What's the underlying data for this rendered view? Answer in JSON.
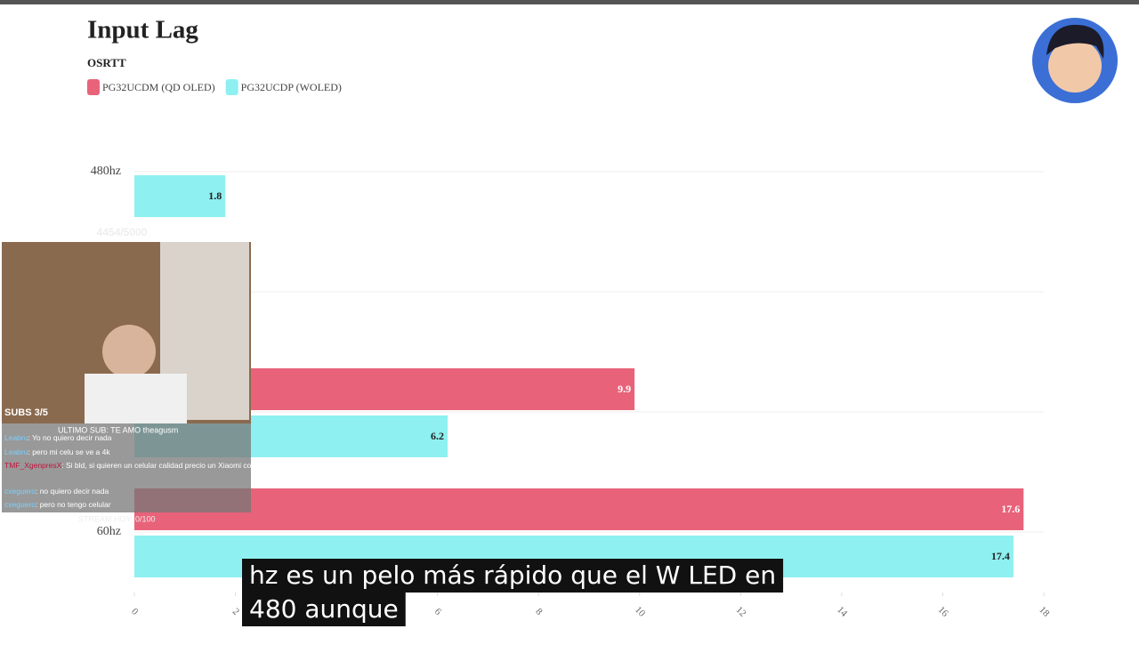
{
  "chart_data": {
    "type": "barh",
    "title": "Input Lag",
    "subtitle": "OSRTT",
    "categories": [
      "480hz",
      null,
      null,
      "60hz"
    ],
    "series": [
      {
        "name": "PG32UCDM (QD OLED)",
        "color": "#e8637a",
        "values": [
          null,
          null,
          9.9,
          17.6
        ]
      },
      {
        "name": "PG32UCDP (WOLED)",
        "color": "#8ef0f0",
        "values": [
          1.8,
          null,
          6.2,
          17.4
        ]
      }
    ],
    "xlim": [
      0,
      18
    ],
    "xticks": [
      0,
      2,
      4,
      6,
      8,
      10,
      12,
      14,
      16,
      18
    ]
  },
  "overlay": {
    "goal": "4454/5000",
    "subs": "SUBS 3/5",
    "last_sub": "ULTIMO SUB: TE AMO theagusm",
    "chat": [
      {
        "user": "Leabru",
        "text": ": Yo no quiero decir nada"
      },
      {
        "user": "Leabru",
        "text": ": pero mi celu se ve a 4k"
      },
      {
        "user": "TMF_XgenpresX",
        "text": ": Si bld, si quieren un celular calidad precio un Xiaomi cortaaaa"
      },
      {
        "user": "cxeguero",
        "text": ": no quiero decir nada"
      },
      {
        "user": "cxeguero",
        "text": ": pero no tengo celular"
      }
    ],
    "stream": "STREAM HOY: 0/100",
    "caption": [
      "hz es un pelo más rápido que el W LED en",
      "480 aunque"
    ]
  }
}
